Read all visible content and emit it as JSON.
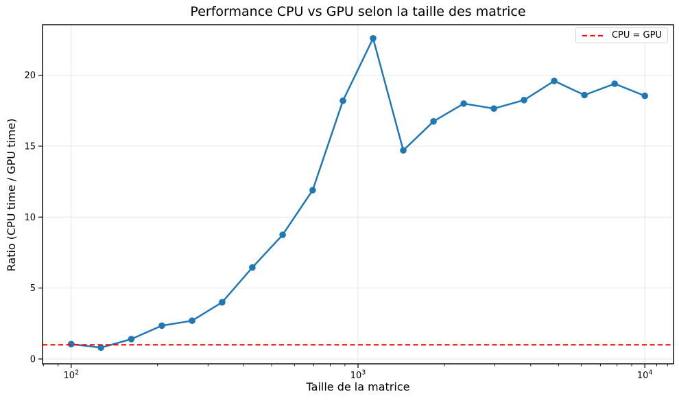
{
  "title": "Performance CPU vs GPU selon la taille des matrice",
  "axes": {
    "xlabel": "Taille de la matrice",
    "ylabel": "Ratio (CPU time / GPU time)"
  },
  "legend": {
    "entries": [
      {
        "label": "CPU = GPU",
        "line_style": "dashed",
        "color": "#ff0000"
      }
    ],
    "position": "upper right"
  },
  "colors": {
    "line": "#1f77b4",
    "marker": "#1f77b4",
    "reference": "#ff0000",
    "grid": "#e6e6e6",
    "spine": "#000000",
    "text": "#000000"
  },
  "chart_data": {
    "type": "line",
    "title": "Performance CPU vs GPU selon la taille des matrice",
    "xlabel": "Taille de la matrice",
    "ylabel": "Ratio (CPU time / GPU time)",
    "x_scale": "log",
    "grid": "major",
    "legend_position": "upper right",
    "x": [
      100,
      127,
      162,
      207,
      264,
      336,
      428,
      546,
      695,
      886,
      1129,
      1438,
      1833,
      2336,
      2976,
      3793,
      4833,
      6158,
      7848,
      10000
    ],
    "y": [
      1.05,
      0.8,
      1.4,
      2.35,
      2.7,
      4.0,
      6.45,
      8.75,
      11.9,
      18.2,
      22.6,
      14.7,
      16.75,
      18.0,
      17.65,
      18.25,
      19.6,
      18.6,
      19.4,
      18.55
    ],
    "reference_line": {
      "y": 1.0,
      "label": "CPU = GPU"
    },
    "xlim": [
      79.43,
      12589.25
    ],
    "ylim": [
      -0.34,
      23.56
    ],
    "x_major_ticks": [
      {
        "value": 100,
        "base": "10",
        "exponent": "2"
      },
      {
        "value": 1000,
        "base": "10",
        "exponent": "3"
      },
      {
        "value": 10000,
        "base": "10",
        "exponent": "4"
      }
    ],
    "x_minor_ticks": [
      80,
      90,
      200,
      300,
      400,
      500,
      600,
      700,
      800,
      900,
      2000,
      3000,
      4000,
      5000,
      6000,
      7000,
      8000,
      9000,
      11000,
      12000
    ],
    "y_ticks": [
      {
        "value": 0,
        "label": "0"
      },
      {
        "value": 5,
        "label": "5"
      },
      {
        "value": 10,
        "label": "10"
      },
      {
        "value": 15,
        "label": "15"
      },
      {
        "value": 20,
        "label": "20"
      }
    ]
  }
}
